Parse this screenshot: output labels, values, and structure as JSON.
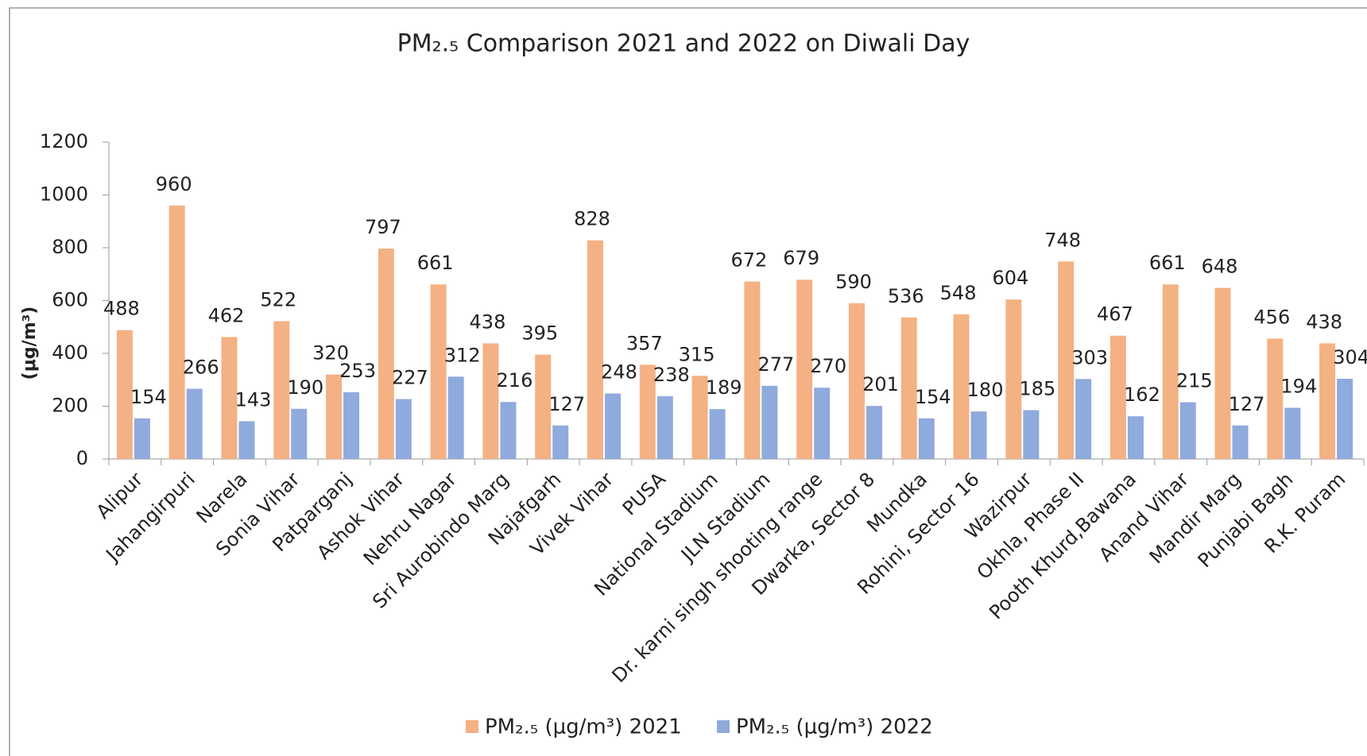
{
  "chart_data": {
    "type": "bar",
    "title": "PM₂.₅ Comparison 2021 and 2022 on Diwali Day",
    "y_label": "(μg/m³)",
    "categories": [
      "Alipur",
      "Jahangirpuri",
      "Narela",
      "Sonia Vihar",
      "Patparganj",
      "Ashok Vihar",
      "Nehru Nagar",
      "Sri Aurobindo Marg",
      "Najafgarh",
      "Vivek Vihar",
      "PUSA",
      "National Stadium",
      "JLN Stadium",
      "Dr. karni singh shooting range",
      "Dwarka, Sector 8",
      "Mundka",
      "Rohini, Sector 16",
      "Wazirpur",
      "Okhla, Phase II",
      "Pooth Khurd,Bawana",
      "Anand Vihar",
      "Mandir Marg",
      "Punjabi Bagh",
      "R.K. Puram"
    ],
    "series": [
      {
        "name": "PM₂.₅ (μg/m³) 2021",
        "color": "#f4b183",
        "values": [
          488,
          960,
          462,
          522,
          320,
          797,
          661,
          438,
          395,
          828,
          357,
          315,
          672,
          679,
          590,
          536,
          548,
          604,
          748,
          467,
          661,
          648,
          456,
          438
        ]
      },
      {
        "name": "PM₂.₅ (μg/m³) 2022",
        "color": "#8faadc",
        "values": [
          154,
          266,
          143,
          190,
          253,
          227,
          312,
          216,
          127,
          248,
          238,
          189,
          277,
          270,
          201,
          154,
          180,
          185,
          303,
          162,
          215,
          127,
          194,
          304
        ]
      }
    ],
    "ylim": [
      0,
      1200
    ],
    "yticks": [
      0,
      200,
      400,
      600,
      800,
      1000,
      1200
    ],
    "legend": "bottom"
  }
}
